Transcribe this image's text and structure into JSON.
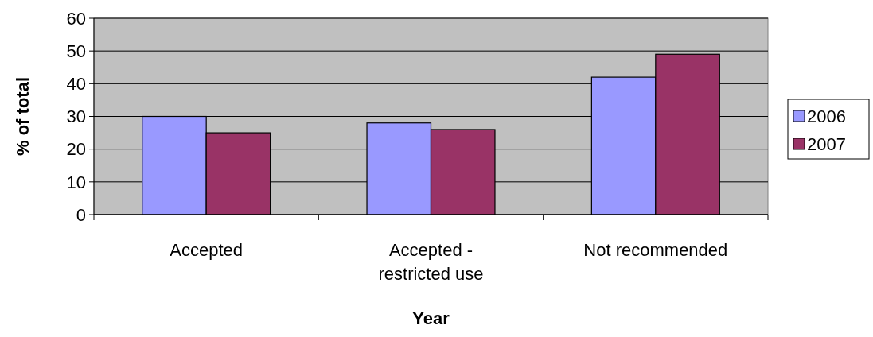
{
  "chart_data": {
    "type": "bar",
    "xlabel": "Year",
    "ylabel": "% of total",
    "categories": [
      "Accepted",
      "Accepted -\nrestricted use",
      "Not recommended"
    ],
    "series": [
      {
        "name": "2006",
        "color": "#9999ff",
        "values": [
          30,
          28,
          42
        ]
      },
      {
        "name": "2007",
        "color": "#993366",
        "values": [
          25,
          26,
          49
        ]
      }
    ],
    "ylim": [
      0,
      60
    ],
    "yticks": [
      0,
      10,
      20,
      30,
      40,
      50,
      60
    ],
    "grid": "y",
    "legend": "right"
  }
}
